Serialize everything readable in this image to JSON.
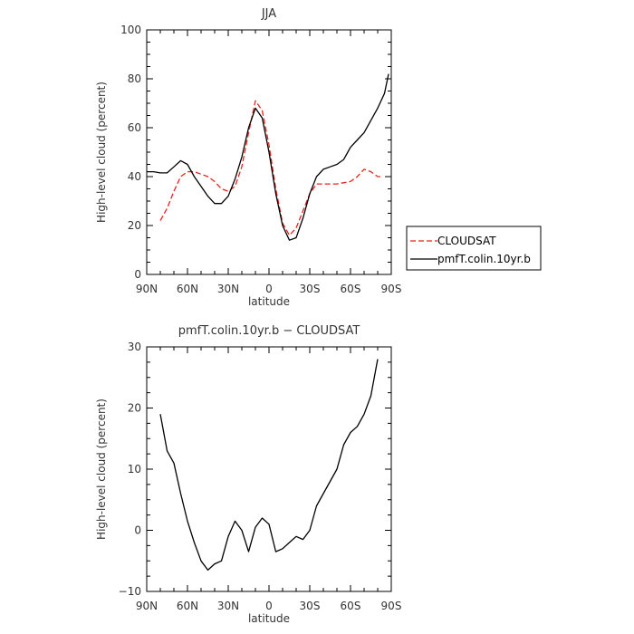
{
  "chart_data": [
    {
      "type": "line",
      "title": "JJA",
      "xlabel": "latitude",
      "ylabel": "High-level cloud (percent)",
      "xlim": [
        -90,
        90
      ],
      "ylim": [
        0,
        100
      ],
      "x_ticks": [
        -90,
        -60,
        -30,
        0,
        30,
        60,
        90
      ],
      "x_tick_labels": [
        "90N",
        "60N",
        "30N",
        "0",
        "30S",
        "60S",
        "90S"
      ],
      "y_ticks": [
        0,
        20,
        40,
        60,
        80,
        100
      ],
      "y_tick_labels": [
        "0",
        "20",
        "40",
        "60",
        "80",
        "100"
      ],
      "legend": {
        "placement": "right",
        "entries": [
          "CLOUDSAT",
          "pmfT.colin.10yr.b"
        ]
      },
      "series": [
        {
          "name": "CLOUDSAT",
          "color": "#e8201e",
          "dash": "dashed",
          "x": [
            -80,
            -75,
            -70,
            -65,
            -60,
            -55,
            -50,
            -45,
            -40,
            -35,
            -30,
            -25,
            -20,
            -15,
            -10,
            -5,
            0,
            5,
            10,
            15,
            20,
            25,
            30,
            35,
            40,
            45,
            50,
            55,
            60,
            65,
            70,
            75,
            80,
            82
          ],
          "y": [
            22,
            27,
            34,
            40,
            42,
            42,
            41,
            40,
            38,
            35,
            34,
            36,
            44,
            58,
            71,
            67,
            53,
            35,
            21,
            16,
            19,
            26,
            33,
            37,
            37,
            37,
            37,
            37.5,
            38,
            40,
            43,
            42,
            40,
            40
          ]
        },
        {
          "name": "pmfT.colin.10yr.b",
          "color": "#000000",
          "dash": "solid",
          "x": [
            -90,
            -85,
            -80,
            -75,
            -70,
            -65,
            -60,
            -55,
            -50,
            -45,
            -40,
            -35,
            -30,
            -25,
            -20,
            -15,
            -10,
            -5,
            0,
            5,
            10,
            15,
            20,
            25,
            30,
            35,
            40,
            45,
            50,
            55,
            60,
            65,
            70,
            75,
            80,
            85,
            88
          ],
          "y": [
            42,
            42,
            41.5,
            41.5,
            44,
            46.5,
            45,
            40,
            36,
            32,
            29,
            29,
            32,
            39,
            48,
            60,
            68,
            64,
            50,
            33,
            20,
            14,
            15,
            23,
            33,
            40,
            43,
            44,
            45,
            47,
            52,
            55,
            58,
            63,
            68,
            74,
            82
          ]
        }
      ]
    },
    {
      "type": "line",
      "title": "pmfT.colin.10yr.b − CLOUDSAT",
      "xlabel": "latitude",
      "ylabel": "High-level cloud (percent)",
      "xlim": [
        -90,
        90
      ],
      "ylim": [
        -10,
        30
      ],
      "x_ticks": [
        -90,
        -60,
        -30,
        0,
        30,
        60,
        90
      ],
      "x_tick_labels": [
        "90N",
        "60N",
        "30N",
        "0",
        "30S",
        "60S",
        "90S"
      ],
      "y_ticks": [
        -10,
        0,
        10,
        20,
        30
      ],
      "y_tick_labels": [
        "−10",
        "0",
        "10",
        "20",
        "30"
      ],
      "series": [
        {
          "color": "#000000",
          "dash": "solid",
          "x": [
            -80,
            -75,
            -70,
            -65,
            -60,
            -55,
            -50,
            -45,
            -40,
            -35,
            -30,
            -25,
            -20,
            -15,
            -10,
            -5,
            0,
            5,
            10,
            15,
            20,
            25,
            30,
            35,
            40,
            45,
            50,
            55,
            60,
            65,
            70,
            75,
            80
          ],
          "y": [
            19,
            13,
            11,
            6,
            1.5,
            -2,
            -5,
            -6.5,
            -5.5,
            -5,
            -1,
            1.5,
            0,
            -3.5,
            0.5,
            2,
            1,
            -3.5,
            -3,
            -2,
            -1,
            -1.5,
            0,
            4,
            6,
            8,
            10,
            14,
            16,
            17,
            19,
            22,
            28
          ]
        }
      ]
    }
  ]
}
